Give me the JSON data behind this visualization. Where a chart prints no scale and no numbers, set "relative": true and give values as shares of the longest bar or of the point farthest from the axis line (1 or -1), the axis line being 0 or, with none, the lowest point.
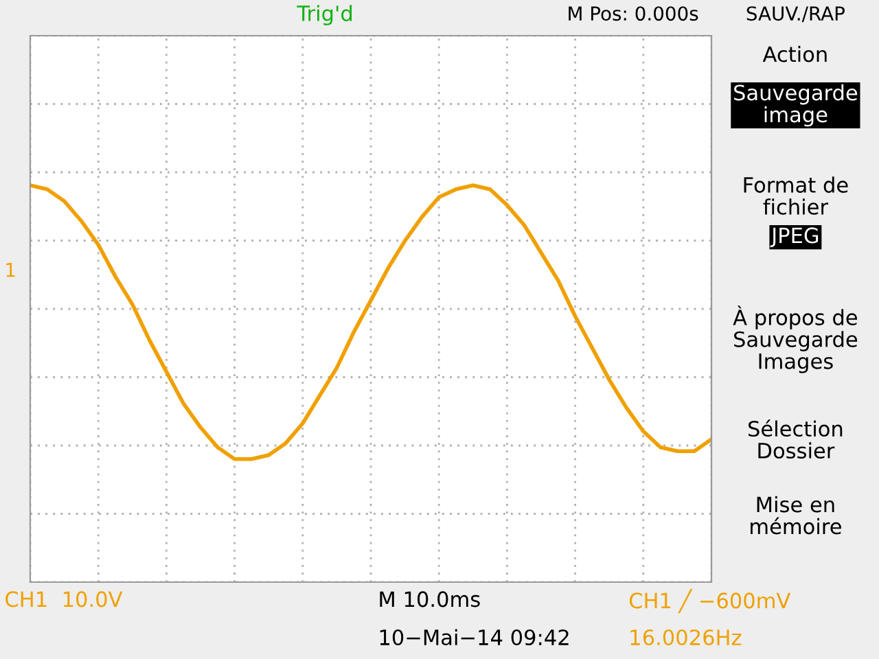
{
  "chart_data": {
    "type": "line",
    "relative": true,
    "grid": true,
    "line_style": "solid",
    "marker": "none",
    "categories": [
      null,
      null,
      null,
      null,
      null,
      null,
      null,
      null,
      null,
      null,
      null,
      null,
      null,
      null,
      null,
      null,
      null,
      null,
      null,
      null,
      null,
      null,
      null,
      null,
      null,
      null,
      null,
      null,
      null,
      null,
      null,
      null,
      null,
      null,
      null,
      null,
      null,
      null,
      null,
      null,
      null
    ],
    "series": [
      {
        "color": "#f0a000",
        "values": [
          1.0,
          0.99,
          0.96,
          0.91,
          0.85,
          0.77,
          0.7,
          0.61,
          0.53,
          0.45,
          0.39,
          0.34,
          0.31,
          0.31,
          0.32,
          0.35,
          0.4,
          0.47,
          0.54,
          0.63,
          0.71,
          0.79,
          0.86,
          0.92,
          0.97,
          0.99,
          1.0,
          0.99,
          0.95,
          0.9,
          0.83,
          0.76,
          0.67,
          0.59,
          0.51,
          0.44,
          0.38,
          0.34,
          0.33,
          0.33,
          0.36
        ]
      }
    ],
    "annotations": [
      "Trig'd",
      "M Pos: 0.000s",
      "SAUV./RAP",
      "Action",
      "Sauvegarde\nimage",
      "Format de\nfichier",
      "JPEG",
      "À propos de\nSauvegarde\nImages",
      "Sélection\nDossier",
      "Mise en\nmémoire",
      "CH1  10.0V",
      "M 10.0ms",
      "CH1 ╱ −600mV",
      "10−Mai−14 09:42",
      "16.0026Hz",
      "1"
    ]
  }
}
